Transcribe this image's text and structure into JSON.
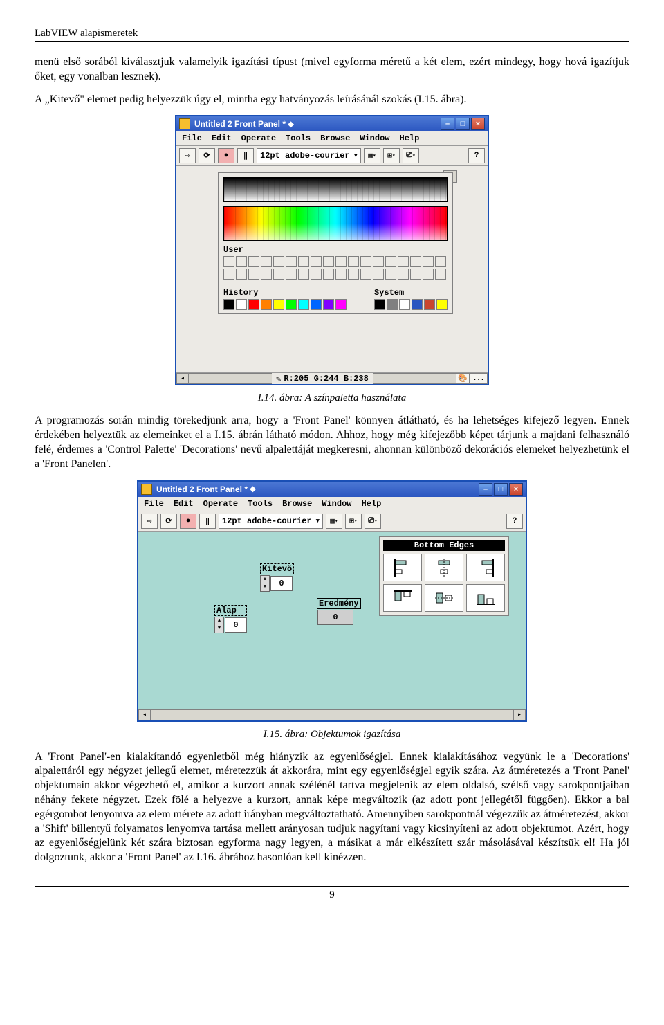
{
  "header": "LabVIEW alapismeretek",
  "page_number": "9",
  "para1": "menü első sorából kiválasztjuk valamelyik igazítási típust (mivel egyforma méretű a két elem, ezért mindegy, hogy hová igazítjuk őket, egy vonalban lesznek).",
  "para2": "A „Kitevő\" elemet pedig helyezzük úgy el, mintha egy hatványozás leírásánál szokás (I.15. ábra).",
  "caption1": "I.14. ábra: A színpaletta használata",
  "para3": "A programozás során mindig törekedjünk arra, hogy a 'Front Panel' könnyen átlátható, és ha lehetséges kifejező legyen. Ennek érdekében helyeztük az elemeinket el a I.15. ábrán látható módon. Ahhoz, hogy még kifejezőbb képet tárjunk a majdani felhasználó felé, érdemes a 'Control Palette' 'Decorations' nevű alpalettáját megkeresni, ahonnan különböző dekorációs elemeket helyezhetünk el a 'Front Panelen'.",
  "caption2": "I.15. ábra: Objektumok igazítása",
  "para4": "A 'Front Panel'-en kialakítandó egyenletből még hiányzik az egyenlőségjel. Ennek kialakításához vegyünk le a 'Decorations' alpalettáról egy négyzet jellegű elemet, méretezzük át akkorára, mint egy egyenlőségjel egyik szára. Az átméretezés a 'Front Panel' objektumain akkor végezhető el, amikor a kurzort annak szélénél tartva megjelenik az elem oldalsó, szélső vagy sarokpontjaiban néhány fekete négyzet. Ezek fölé a helyezve a kurzort, annak képe megváltozik (az adott pont jellegétől függően). Ekkor a bal egérgombot lenyomva az elem mérete az adott irányban megváltoztatható. Amennyiben sarokpontnál végezzük az átméretezést, akkor a 'Shift' billentyű folyamatos lenyomva tartása mellett arányosan tudjuk nagyítani vagy kicsinyíteni az adott objektumot. Azért, hogy az egyenlőségjelünk két szára biztosan egyforma nagy legyen, a másikat a már elkészített szár másolásával készítsük el! Ha jól dolgoztunk, akkor a 'Front Panel' az I.16. ábrához hasonlóan kell kinézzen.",
  "window": {
    "title": "Untitled 2 Front Panel *",
    "menu": [
      "File",
      "Edit",
      "Operate",
      "Tools",
      "Browse",
      "Window",
      "Help"
    ],
    "font": "12pt adobe-courier",
    "help_badge": "?"
  },
  "color_panel": {
    "user_label": "User",
    "history_label": "History",
    "system_label": "System",
    "rgb": "R:205 G:244 B:238",
    "history_swatches": [
      "#000000",
      "#ffffff",
      "#ff0000",
      "#ff8000",
      "#ffff00",
      "#00ff00",
      "#00ffff",
      "#0066ff",
      "#8000ff",
      "#ff00ff"
    ],
    "system_swatches": [
      "#000000",
      "#808080",
      "#ffffff",
      "#2b56c0",
      "#c9462e",
      "#ffff00"
    ]
  },
  "fig2": {
    "kitevo_label": "Kitevő",
    "kitevo_val": "0",
    "alap_label": "Alap",
    "alap_val": "0",
    "eredmeny_label": "Eredmény",
    "eredmeny_val": "0",
    "align_title": "Bottom Edges"
  }
}
